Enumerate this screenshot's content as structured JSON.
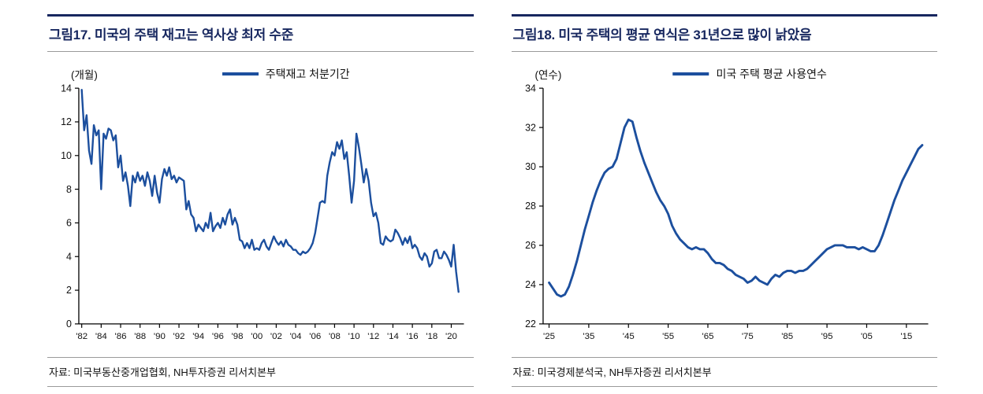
{
  "colors": {
    "accent": "#1c4f9e",
    "title": "#17275f",
    "axis": "#000000",
    "rule": "#9a9a9a"
  },
  "panels": [
    {
      "source": "자료: 미국부동산중개업협회, NH투자증권 리서치본부"
    },
    {
      "source": "자료: 미국경제분석국, NH투자증권 리서치본부"
    }
  ],
  "chart_data": [
    {
      "type": "line",
      "title": "그림17. 미국의 주택 재고는 역사상 최저 수준",
      "ylabel": "(개월)",
      "legend": "주택재고 처분기간",
      "grid": false,
      "legend_position": "top-center",
      "xlim": [
        1981.7,
        2021.3
      ],
      "ylim": [
        0,
        14
      ],
      "yticks": [
        0,
        2,
        4,
        6,
        8,
        10,
        12,
        14
      ],
      "xticks": [
        {
          "v": 1982,
          "label": "'82"
        },
        {
          "v": 1984,
          "label": "'84"
        },
        {
          "v": 1986,
          "label": "'86"
        },
        {
          "v": 1988,
          "label": "'88"
        },
        {
          "v": 1990,
          "label": "'90"
        },
        {
          "v": 1992,
          "label": "'92"
        },
        {
          "v": 1994,
          "label": "'94"
        },
        {
          "v": 1996,
          "label": "'96"
        },
        {
          "v": 1998,
          "label": "'98"
        },
        {
          "v": 2000,
          "label": "'00"
        },
        {
          "v": 2002,
          "label": "'02"
        },
        {
          "v": 2004,
          "label": "'04"
        },
        {
          "v": 2006,
          "label": "'06"
        },
        {
          "v": 2008,
          "label": "'08"
        },
        {
          "v": 2010,
          "label": "'10"
        },
        {
          "v": 2012,
          "label": "'12"
        },
        {
          "v": 2014,
          "label": "'14"
        },
        {
          "v": 2016,
          "label": "'16"
        },
        {
          "v": 2018,
          "label": "'18"
        },
        {
          "v": 2020,
          "label": "'20"
        }
      ],
      "x_start": 1982.0,
      "x_step": 0.25,
      "values": [
        13.9,
        11.5,
        12.4,
        10.3,
        9.5,
        11.8,
        11.2,
        11.5,
        8.0,
        11.3,
        11.0,
        11.6,
        11.5,
        10.9,
        11.2,
        9.3,
        10.0,
        8.5,
        9.0,
        8.2,
        7.0,
        8.8,
        8.4,
        9.0,
        8.5,
        8.8,
        8.2,
        9.0,
        8.5,
        7.6,
        8.8,
        7.8,
        7.2,
        8.6,
        9.2,
        8.8,
        9.3,
        8.6,
        8.8,
        8.4,
        8.7,
        8.6,
        8.5,
        6.8,
        7.3,
        6.5,
        6.3,
        5.5,
        5.9,
        5.7,
        5.5,
        6.0,
        5.7,
        6.6,
        5.5,
        5.8,
        6.0,
        5.7,
        6.3,
        5.9,
        6.5,
        6.8,
        5.9,
        6.3,
        5.9,
        5.0,
        4.9,
        4.5,
        4.8,
        4.5,
        5.0,
        4.4,
        4.5,
        4.4,
        4.8,
        5.0,
        4.6,
        4.4,
        4.8,
        5.2,
        4.9,
        4.7,
        4.9,
        4.6,
        5.0,
        4.7,
        4.6,
        4.4,
        4.4,
        4.2,
        4.1,
        4.3,
        4.2,
        4.3,
        4.5,
        4.8,
        5.4,
        6.3,
        7.2,
        7.3,
        7.2,
        8.8,
        9.6,
        10.2,
        10.0,
        10.8,
        10.4,
        10.9,
        9.8,
        10.2,
        8.8,
        7.2,
        8.5,
        11.3,
        10.5,
        9.5,
        8.4,
        9.2,
        8.5,
        7.2,
        6.4,
        6.6,
        6.0,
        4.8,
        4.7,
        5.2,
        5.0,
        4.9,
        5.0,
        5.6,
        5.4,
        5.1,
        4.7,
        5.1,
        4.8,
        5.2,
        4.5,
        4.7,
        4.5,
        4.0,
        3.8,
        4.2,
        4.0,
        3.4,
        3.6,
        4.3,
        4.4,
        3.9,
        3.9,
        4.3,
        4.1,
        3.8,
        3.4,
        4.7,
        3.1,
        1.9
      ]
    },
    {
      "type": "line",
      "title": "그림18. 미국 주택의 평균 연식은 31년으로 많이 낡았음",
      "ylabel": "(연수)",
      "legend": "미국 주택 평균 사용연수",
      "grid": false,
      "legend_position": "top-center",
      "xlim": [
        1923.5,
        2020.5
      ],
      "ylim": [
        22,
        34
      ],
      "yticks": [
        22,
        24,
        26,
        28,
        30,
        32,
        34
      ],
      "xticks": [
        {
          "v": 1925,
          "label": "'25"
        },
        {
          "v": 1935,
          "label": "'35"
        },
        {
          "v": 1945,
          "label": "'45"
        },
        {
          "v": 1955,
          "label": "'55"
        },
        {
          "v": 1965,
          "label": "'65"
        },
        {
          "v": 1975,
          "label": "'75"
        },
        {
          "v": 1985,
          "label": "'85"
        },
        {
          "v": 1995,
          "label": "'95"
        },
        {
          "v": 2005,
          "label": "'05"
        },
        {
          "v": 2015,
          "label": "'15"
        }
      ],
      "x_start": 1925,
      "x_step": 1,
      "values": [
        24.1,
        23.8,
        23.5,
        23.4,
        23.5,
        23.9,
        24.5,
        25.2,
        26.0,
        26.8,
        27.5,
        28.2,
        28.8,
        29.3,
        29.7,
        29.9,
        30.0,
        30.4,
        31.2,
        32.0,
        32.4,
        32.3,
        31.5,
        30.8,
        30.2,
        29.7,
        29.2,
        28.7,
        28.3,
        28.0,
        27.6,
        27.0,
        26.6,
        26.3,
        26.1,
        25.9,
        25.8,
        25.9,
        25.8,
        25.8,
        25.6,
        25.3,
        25.1,
        25.1,
        25.0,
        24.8,
        24.7,
        24.5,
        24.4,
        24.3,
        24.1,
        24.2,
        24.4,
        24.2,
        24.1,
        24.0,
        24.3,
        24.5,
        24.4,
        24.6,
        24.7,
        24.7,
        24.6,
        24.7,
        24.7,
        24.8,
        25.0,
        25.2,
        25.4,
        25.6,
        25.8,
        25.9,
        26.0,
        26.0,
        26.0,
        25.9,
        25.9,
        25.9,
        25.8,
        25.9,
        25.8,
        25.7,
        25.7,
        26.0,
        26.5,
        27.1,
        27.7,
        28.3,
        28.8,
        29.3,
        29.7,
        30.1,
        30.5,
        30.9,
        31.1
      ]
    }
  ]
}
